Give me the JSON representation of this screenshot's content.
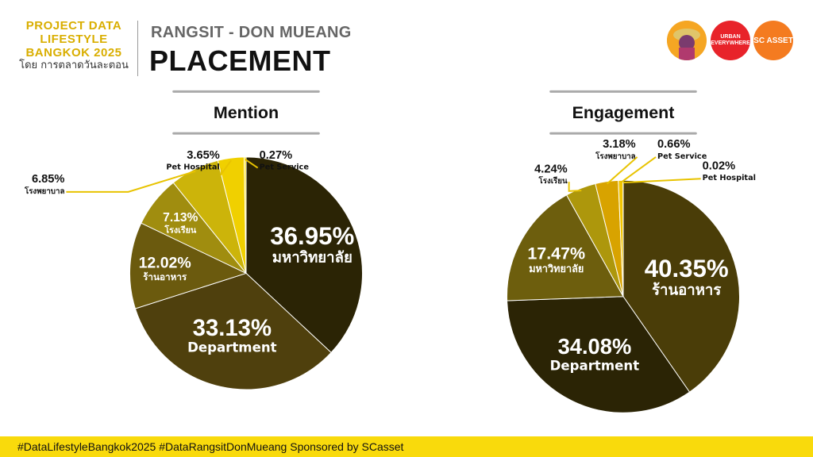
{
  "header": {
    "brand_line1": "PROJECT DATA",
    "brand_line2": "LIFESTYLE",
    "brand_line3": "BANGKOK 2025",
    "brand_by": "โดย การตลาดวันละตอน",
    "subtitle": "RANGSIT - DON MUEANG",
    "title": "PLACEMENT"
  },
  "logos": [
    {
      "name": "mascot-logo",
      "text": ""
    },
    {
      "name": "urban-everywhere-logo",
      "text": "URBAN EVERYWHERE"
    },
    {
      "name": "sc-asset-logo",
      "text": "SC ASSET"
    }
  ],
  "chart_data": [
    {
      "type": "pie",
      "title": "Mention",
      "slices": [
        {
          "label": "มหาวิทยาลัย",
          "value": 36.95,
          "display": "36.95%",
          "color": "#2b2405"
        },
        {
          "label": "Department",
          "value": 33.13,
          "display": "33.13%",
          "color": "#4f400d"
        },
        {
          "label": "ร้านอาหาร",
          "value": 12.02,
          "display": "12.02%",
          "color": "#6b5a0e"
        },
        {
          "label": "โรงเรียน",
          "value": 7.13,
          "display": "7.13%",
          "color": "#a08d0f"
        },
        {
          "label": "โรงพยาบาล",
          "value": 6.85,
          "display": "6.85%",
          "color": "#ccb40a"
        },
        {
          "label": "Pet Hospital",
          "value": 3.65,
          "display": "3.65%",
          "color": "#f0d000"
        },
        {
          "label": "Pet Service",
          "value": 0.27,
          "display": "0.27%",
          "color": "#f9e21a"
        }
      ]
    },
    {
      "type": "pie",
      "title": "Engagement",
      "slices": [
        {
          "label": "ร้านอาหาร",
          "value": 40.35,
          "display": "40.35%",
          "color": "#4a3d08"
        },
        {
          "label": "Department",
          "value": 34.08,
          "display": "34.08%",
          "color": "#2b2405"
        },
        {
          "label": "มหาวิทยาลัย",
          "value": 17.47,
          "display": "17.47%",
          "color": "#6d5e0d"
        },
        {
          "label": "โรงเรียน",
          "value": 4.24,
          "display": "4.24%",
          "color": "#ad970c"
        },
        {
          "label": "โรงพยาบาล",
          "value": 3.18,
          "display": "3.18%",
          "color": "#d8a300"
        },
        {
          "label": "Pet Service",
          "value": 0.66,
          "display": "0.66%",
          "color": "#f0c400"
        },
        {
          "label": "Pet Hospital",
          "value": 0.02,
          "display": "0.02%",
          "color": "#f7dc00"
        }
      ]
    }
  ],
  "footer": {
    "text": "#DataLifestyleBangkok2025 #DataRangsitDonMueang Sponsored by SCasset",
    "color": "#f9da0c"
  }
}
